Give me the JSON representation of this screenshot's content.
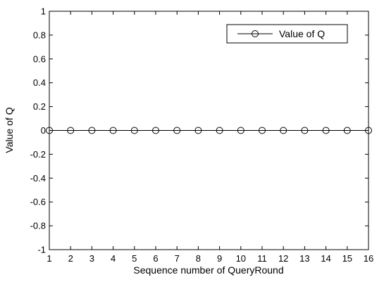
{
  "chart_data": {
    "type": "line",
    "x": [
      1,
      2,
      3,
      4,
      5,
      6,
      7,
      8,
      9,
      10,
      11,
      12,
      13,
      14,
      15,
      16
    ],
    "series": [
      {
        "name": "Value of Q",
        "values": [
          0,
          0,
          0,
          0,
          0,
          0,
          0,
          0,
          0,
          0,
          0,
          0,
          0,
          0,
          0,
          0
        ],
        "marker": "circle-open",
        "color": "#000000"
      }
    ],
    "xlabel": "Sequence number of QueryRound",
    "ylabel": "Value of Q",
    "xlim": [
      1,
      16
    ],
    "ylim": [
      -1,
      1
    ],
    "xticks": [
      "1",
      "2",
      "3",
      "4",
      "5",
      "6",
      "7",
      "8",
      "9",
      "10",
      "11",
      "12",
      "13",
      "14",
      "15",
      "16"
    ],
    "yticks": [
      "-1",
      "-0.8",
      "-0.6",
      "-0.4",
      "-0.2",
      "0",
      "0.2",
      "0.4",
      "0.6",
      "0.8",
      "1"
    ],
    "grid": false,
    "legend_position": "top-right"
  }
}
